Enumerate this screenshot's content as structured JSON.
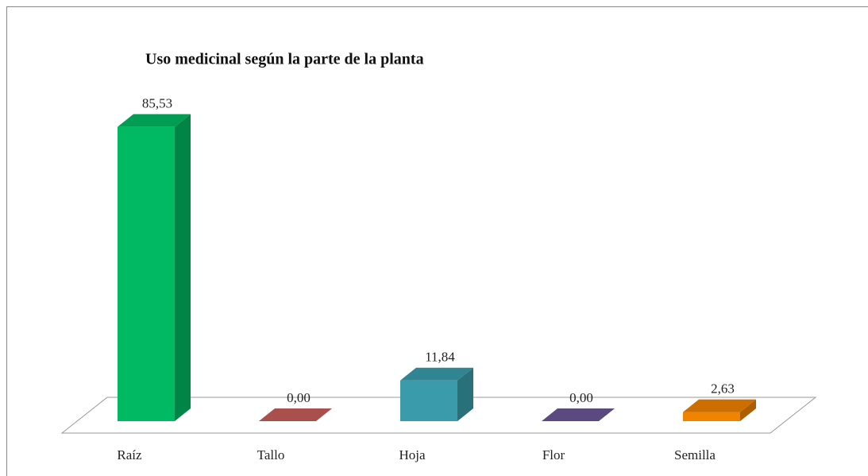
{
  "chart_data": {
    "type": "bar3d",
    "title": "Uso medicinal según la parte de la planta",
    "categories": [
      "Raíz",
      "Tallo",
      "Hoja",
      "Flor",
      "Semilla"
    ],
    "values": [
      85.53,
      0,
      11.84,
      0,
      2.63
    ],
    "value_labels": [
      "85,53",
      "0,00",
      "11,84",
      "0,00",
      "2,63"
    ],
    "colors": [
      "#00b962",
      "#a9504c",
      "#3a9bab",
      "#5a4a80",
      "#f08300"
    ]
  }
}
